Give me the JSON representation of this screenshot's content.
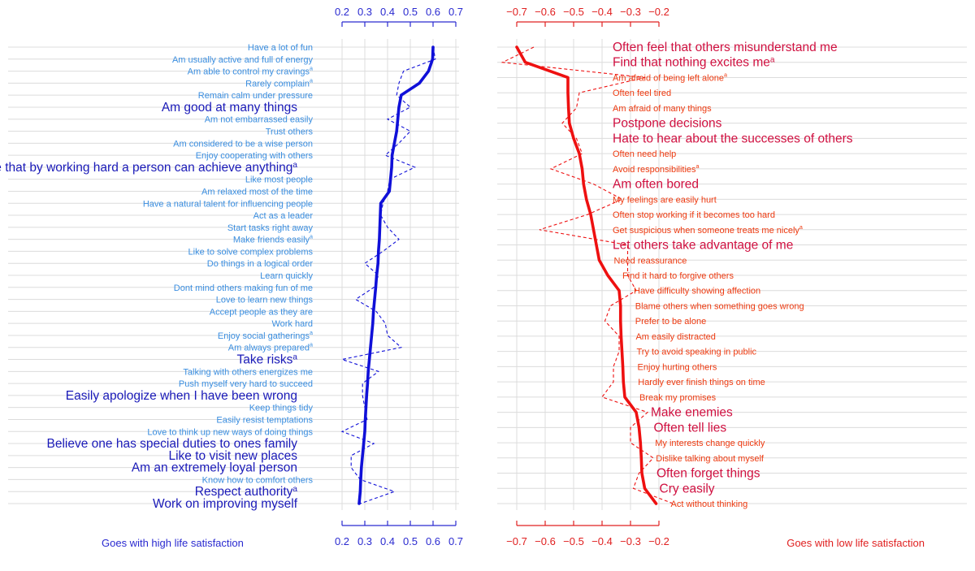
{
  "chart_data": [
    {
      "type": "line",
      "panel": "left",
      "caption": "Goes with high life satisfaction",
      "axis_ticks": [
        "0.2",
        "0.3",
        "0.4",
        "0.5",
        "0.6",
        "0.7"
      ],
      "xlim": [
        0.2,
        0.7
      ],
      "grid": true,
      "colors": {
        "axis": "#2a2ad0",
        "line": "#1010d8",
        "small_label": "#3a8ee0",
        "large_label": "#1a1ab8",
        "grid": "#dcdcdc"
      },
      "items": [
        {
          "label": "Have a lot of fun",
          "sup": "",
          "large": false,
          "solid": 0.6,
          "dashed": 0.6
        },
        {
          "label": "Am usually active and full of energy",
          "sup": "",
          "large": false,
          "solid": 0.598,
          "dashed": 0.61
        },
        {
          "label": "Am able to control my cravings",
          "sup": "a",
          "large": false,
          "solid": 0.58,
          "dashed": 0.47
        },
        {
          "label": "Rarely complain",
          "sup": "a",
          "large": false,
          "solid": 0.54,
          "dashed": 0.45
        },
        {
          "label": "Remain calm under pressure",
          "sup": "",
          "large": false,
          "solid": 0.46,
          "dashed": 0.44
        },
        {
          "label": "Am good at many things",
          "sup": "",
          "large": true,
          "solid": 0.45,
          "dashed": 0.5
        },
        {
          "label": "Am not embarrassed easily",
          "sup": "",
          "large": false,
          "solid": 0.445,
          "dashed": 0.4
        },
        {
          "label": "Trust others",
          "sup": "",
          "large": false,
          "solid": 0.44,
          "dashed": 0.5
        },
        {
          "label": "Am considered to be a wise person",
          "sup": "",
          "large": false,
          "solid": 0.43,
          "dashed": 0.45
        },
        {
          "label": "Enjoy cooperating with others",
          "sup": "",
          "large": false,
          "solid": 0.42,
          "dashed": 0.39
        },
        {
          "label": "Believe that by working hard a person can achieve anything",
          "sup": "a",
          "large": true,
          "solid": 0.418,
          "dashed": 0.52
        },
        {
          "label": "Like most people",
          "sup": "",
          "large": false,
          "solid": 0.413,
          "dashed": 0.41
        },
        {
          "label": "Am relaxed most of the time",
          "sup": "",
          "large": false,
          "solid": 0.408,
          "dashed": 0.4
        },
        {
          "label": "Have a natural talent for influencing people",
          "sup": "",
          "large": false,
          "solid": 0.37,
          "dashed": 0.38
        },
        {
          "label": "Act as a leader",
          "sup": "",
          "large": false,
          "solid": 0.368,
          "dashed": 0.37
        },
        {
          "label": "Start tasks right away",
          "sup": "",
          "large": false,
          "solid": 0.366,
          "dashed": 0.4
        },
        {
          "label": "Make friends easily",
          "sup": "a",
          "large": false,
          "solid": 0.364,
          "dashed": 0.45
        },
        {
          "label": "Like to solve complex problems",
          "sup": "",
          "large": false,
          "solid": 0.36,
          "dashed": 0.38
        },
        {
          "label": "Do things in a logical order",
          "sup": "",
          "large": false,
          "solid": 0.358,
          "dashed": 0.3
        },
        {
          "label": "Learn quickly",
          "sup": "",
          "large": false,
          "solid": 0.352,
          "dashed": 0.36
        },
        {
          "label": "Dont mind others making fun of me",
          "sup": "",
          "large": false,
          "solid": 0.348,
          "dashed": 0.34
        },
        {
          "label": "Love to learn new things",
          "sup": "",
          "large": false,
          "solid": 0.343,
          "dashed": 0.26
        },
        {
          "label": "Accept people as they are",
          "sup": "",
          "large": false,
          "solid": 0.338,
          "dashed": 0.35
        },
        {
          "label": "Work hard",
          "sup": "",
          "large": false,
          "solid": 0.335,
          "dashed": 0.39
        },
        {
          "label": "Enjoy social gatherings",
          "sup": "a",
          "large": false,
          "solid": 0.33,
          "dashed": 0.4
        },
        {
          "label": "Am always prepared",
          "sup": "a",
          "large": false,
          "solid": 0.325,
          "dashed": 0.46
        },
        {
          "label": "Take risks",
          "sup": "a",
          "large": true,
          "solid": 0.32,
          "dashed": 0.2
        },
        {
          "label": "Talking with others energizes me",
          "sup": "",
          "large": false,
          "solid": 0.315,
          "dashed": 0.36
        },
        {
          "label": "Push myself very hard to succeed",
          "sup": "",
          "large": false,
          "solid": 0.312,
          "dashed": 0.29
        },
        {
          "label": "Easily apologize when I have been wrong",
          "sup": "",
          "large": true,
          "solid": 0.308,
          "dashed": 0.29
        },
        {
          "label": "Keep things tidy",
          "sup": "",
          "large": false,
          "solid": 0.305,
          "dashed": 0.3
        },
        {
          "label": "Easily resist temptations",
          "sup": "",
          "large": false,
          "solid": 0.302,
          "dashed": 0.31
        },
        {
          "label": "Love to think up new ways of doing things",
          "sup": "",
          "large": false,
          "solid": 0.3,
          "dashed": 0.2
        },
        {
          "label": "Believe one has special duties to ones family",
          "sup": "",
          "large": true,
          "solid": 0.295,
          "dashed": 0.34
        },
        {
          "label": "Like to visit new places",
          "sup": "",
          "large": true,
          "solid": 0.29,
          "dashed": 0.24
        },
        {
          "label": "Am an extremely loyal person",
          "sup": "",
          "large": true,
          "solid": 0.285,
          "dashed": 0.24
        },
        {
          "label": "Know how to comfort others",
          "sup": "",
          "large": false,
          "solid": 0.282,
          "dashed": 0.28
        },
        {
          "label": "Respect authority",
          "sup": "a",
          "large": true,
          "solid": 0.28,
          "dashed": 0.43
        },
        {
          "label": "Work on improving myself",
          "sup": "",
          "large": true,
          "solid": 0.275,
          "dashed": 0.28
        }
      ]
    },
    {
      "type": "line",
      "panel": "right",
      "caption": "Goes with low life satisfaction",
      "axis_ticks": [
        "−0.7",
        "−0.6",
        "−0.5",
        "−0.4",
        "−0.3",
        "−0.2"
      ],
      "xlim": [
        -0.7,
        -0.2
      ],
      "grid": true,
      "colors": {
        "axis": "#e02020",
        "line": "#ee1010",
        "small_label": "#ee3a10",
        "large_label": "#d01040",
        "grid": "#dcdcdc"
      },
      "items": [
        {
          "label": "Often feel that others misunderstand me",
          "sup": "",
          "large": true,
          "solid": -0.7,
          "dashed": -0.64
        },
        {
          "label": "Find that nothing excites me",
          "sup": "a",
          "large": true,
          "solid": -0.67,
          "dashed": -0.75
        },
        {
          "label": "Am afraid of being left alone",
          "sup": "a",
          "large": false,
          "solid": -0.52,
          "dashed": -0.25
        },
        {
          "label": "Often feel tired",
          "sup": "",
          "large": false,
          "solid": -0.52,
          "dashed": -0.48
        },
        {
          "label": "Am afraid of many things",
          "sup": "",
          "large": false,
          "solid": -0.518,
          "dashed": -0.49
        },
        {
          "label": "Postpone decisions",
          "sup": "",
          "large": true,
          "solid": -0.515,
          "dashed": -0.54
        },
        {
          "label": "Hate to hear about the successes of others",
          "sup": "",
          "large": true,
          "solid": -0.5,
          "dashed": -0.49
        },
        {
          "label": "Often need help",
          "sup": "",
          "large": false,
          "solid": -0.48,
          "dashed": -0.47
        },
        {
          "label": "Avoid responsibilities",
          "sup": "a",
          "large": false,
          "solid": -0.47,
          "dashed": -0.58
        },
        {
          "label": "Am often bored",
          "sup": "",
          "large": true,
          "solid": -0.465,
          "dashed": -0.43
        },
        {
          "label": "My feelings are easily hurt",
          "sup": "",
          "large": false,
          "solid": -0.455,
          "dashed": -0.33
        },
        {
          "label": "Often stop working if it becomes too hard",
          "sup": "",
          "large": false,
          "solid": -0.44,
          "dashed": -0.45
        },
        {
          "label": "Get suspicious when someone treats me nicely",
          "sup": "a",
          "large": false,
          "solid": -0.43,
          "dashed": -0.62
        },
        {
          "label": "Let others take advantage of me",
          "sup": "",
          "large": true,
          "solid": -0.42,
          "dashed": -0.31
        },
        {
          "label": "Need reassurance",
          "sup": "",
          "large": false,
          "solid": -0.41,
          "dashed": -0.31
        },
        {
          "label": "Find it hard to forgive others",
          "sup": "",
          "large": false,
          "solid": -0.38,
          "dashed": -0.31
        },
        {
          "label": "Have difficulty showing affection",
          "sup": "",
          "large": false,
          "solid": -0.34,
          "dashed": -0.28
        },
        {
          "label": "Blame others when something goes wrong",
          "sup": "",
          "large": false,
          "solid": -0.335,
          "dashed": -0.37
        },
        {
          "label": "Prefer to be alone",
          "sup": "",
          "large": false,
          "solid": -0.335,
          "dashed": -0.39
        },
        {
          "label": "Am easily distracted",
          "sup": "",
          "large": false,
          "solid": -0.333,
          "dashed": -0.34
        },
        {
          "label": "Try to avoid speaking in public",
          "sup": "",
          "large": false,
          "solid": -0.33,
          "dashed": -0.34
        },
        {
          "label": "Enjoy hurting others",
          "sup": "",
          "large": false,
          "solid": -0.327,
          "dashed": -0.36
        },
        {
          "label": "Hardly ever finish things on time",
          "sup": "",
          "large": false,
          "solid": -0.325,
          "dashed": -0.36
        },
        {
          "label": "Break my promises",
          "sup": "",
          "large": false,
          "solid": -0.32,
          "dashed": -0.4
        },
        {
          "label": "Make enemies",
          "sup": "",
          "large": true,
          "solid": -0.28,
          "dashed": -0.24
        },
        {
          "label": "Often tell lies",
          "sup": "",
          "large": true,
          "solid": -0.27,
          "dashed": -0.3
        },
        {
          "label": "My interests change quickly",
          "sup": "",
          "large": false,
          "solid": -0.265,
          "dashed": -0.3
        },
        {
          "label": "Dislike talking about myself",
          "sup": "",
          "large": false,
          "solid": -0.262,
          "dashed": -0.22
        },
        {
          "label": "Often forget things",
          "sup": "",
          "large": true,
          "solid": -0.26,
          "dashed": -0.27
        },
        {
          "label": "Cry easily",
          "sup": "",
          "large": true,
          "solid": -0.25,
          "dashed": -0.29
        },
        {
          "label": "Act without thinking",
          "sup": "",
          "large": false,
          "solid": -0.21,
          "dashed": -0.15
        }
      ]
    }
  ]
}
